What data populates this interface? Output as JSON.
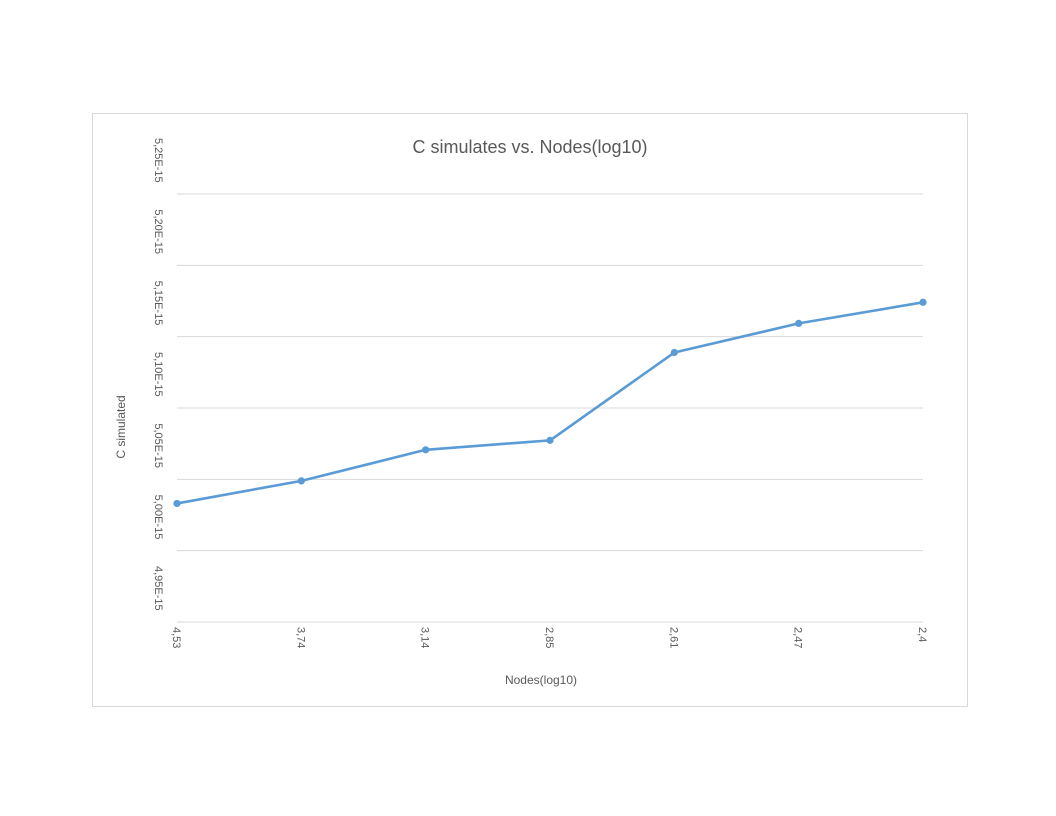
{
  "chart_data": {
    "type": "line",
    "title": "C simulates vs. Nodes(log10)",
    "xlabel": "Nodes(log10)",
    "ylabel": "C simulated",
    "categories": [
      "4,53",
      "3,74",
      "3,14",
      "2,85",
      "2,61",
      "2,47",
      "2,4"
    ],
    "series": [
      {
        "values": [
          5.0331e-15,
          5.0489e-15,
          5.0707e-15,
          5.0773e-15,
          5.1389e-15,
          5.1593e-15,
          5.1741e-15
        ],
        "color": "#5b9bd5"
      }
    ],
    "ylim": [
      4.95e-15,
      5.25e-15
    ],
    "yticks": [
      4.95e-15,
      5e-15,
      5.05e-15,
      5.1e-15,
      5.15e-15,
      5.2e-15,
      5.25e-15
    ],
    "ytick_labels": [
      "4,95E-15",
      "5,00E-15",
      "5,05E-15",
      "5,10E-15",
      "5,15E-15",
      "5,20E-15",
      "5,25E-15"
    ],
    "grid": true,
    "legend": "none",
    "colors": {
      "line": "#5b9bd5",
      "grid": "#d9d9d9",
      "text": "#595959"
    }
  }
}
